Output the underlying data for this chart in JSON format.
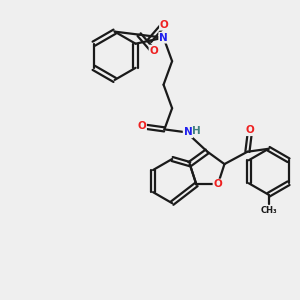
{
  "background_color": "#efefef",
  "bond_color": "#1a1a1a",
  "atom_colors": {
    "N": "#2020ee",
    "O": "#ee2020",
    "H": "#408080",
    "C": "#1a1a1a"
  },
  "figsize": [
    3.0,
    3.0
  ],
  "dpi": 100
}
